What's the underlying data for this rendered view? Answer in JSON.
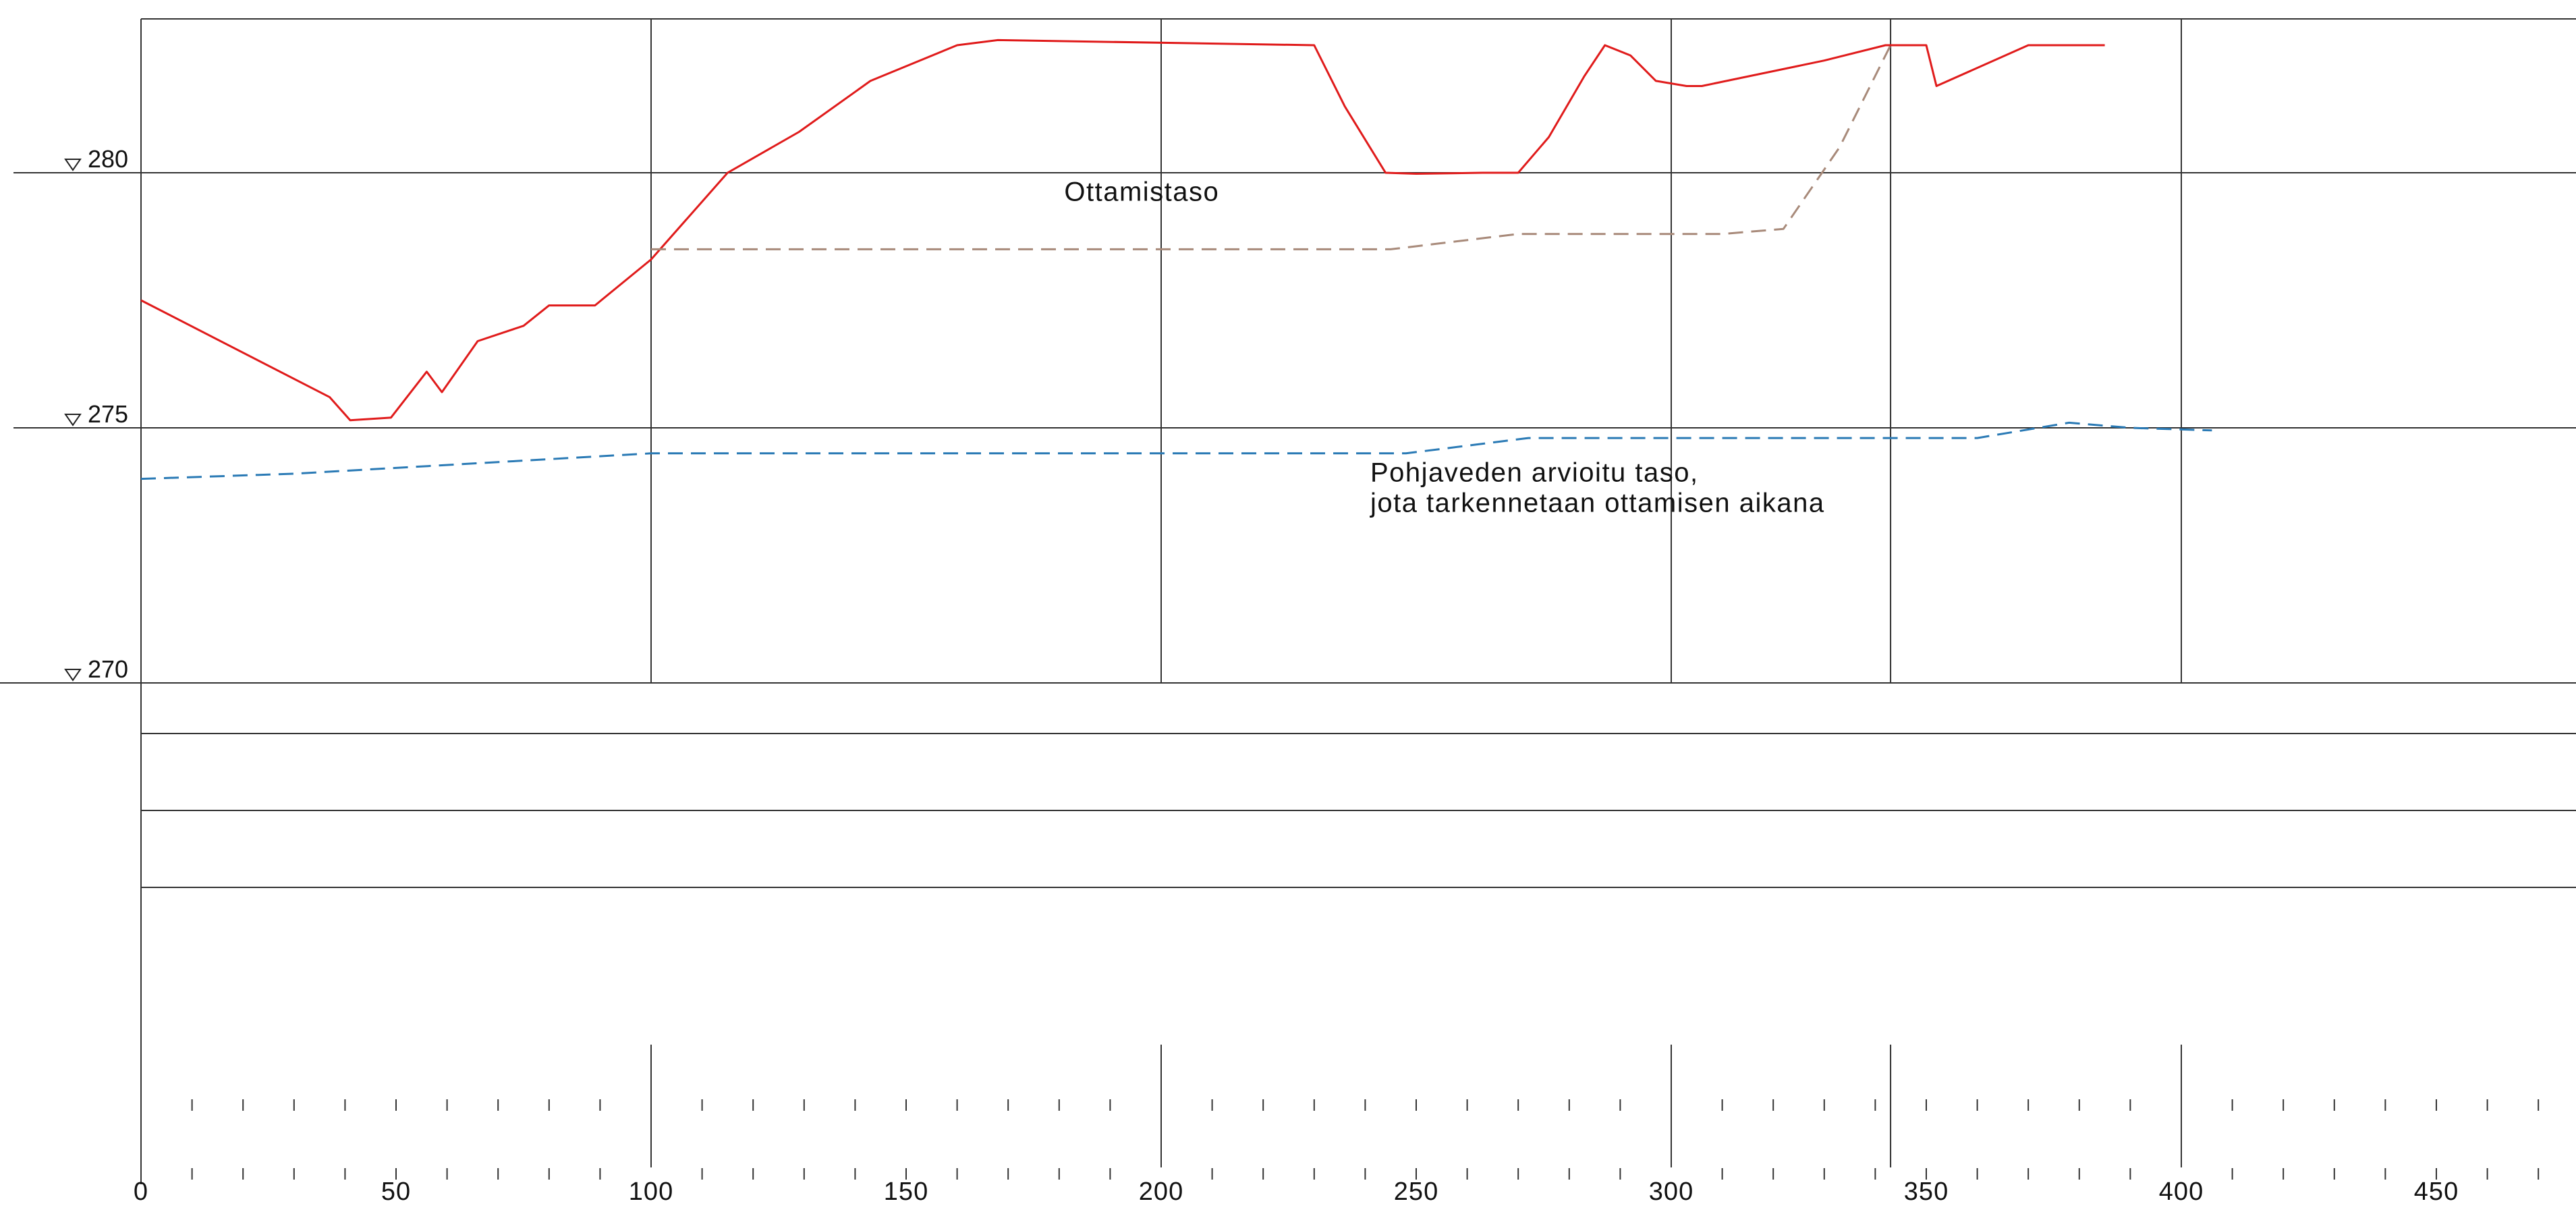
{
  "chart_data": {
    "type": "line",
    "title": "",
    "xlabel": "",
    "ylabel": "",
    "xlim": [
      0,
      475
    ],
    "ylim": [
      270,
      283
    ],
    "grid": true,
    "x_ticks": [
      0,
      50,
      100,
      150,
      200,
      250,
      300,
      350,
      400,
      450
    ],
    "x_tick_labels": [
      "0",
      "50",
      "100",
      "150",
      "200",
      "250",
      "300",
      "350",
      "400",
      "450"
    ],
    "vertical_gridlines_x": [
      100,
      200,
      300,
      343,
      400
    ],
    "level_markers": [
      {
        "value": 280,
        "label": "280"
      },
      {
        "value": 275,
        "label": "275"
      },
      {
        "value": 270,
        "label": "270"
      }
    ],
    "series": [
      {
        "color": "#e01b1b",
        "style": "solid",
        "x": [
          0,
          37,
          41,
          49,
          56,
          59,
          66,
          75,
          80,
          89,
          100,
          115,
          129,
          143,
          160,
          168,
          230,
          236,
          244,
          250,
          263,
          270,
          276,
          283,
          287,
          292,
          297,
          303,
          306,
          330,
          342,
          348,
          350,
          352,
          370,
          385
        ],
        "y": [
          277.5,
          275.6,
          275.15,
          275.2,
          276.1,
          275.7,
          276.7,
          277.0,
          277.4,
          277.4,
          278.3,
          280.0,
          280.8,
          281.8,
          282.5,
          282.6,
          282.5,
          281.3,
          280.0,
          279.98,
          280.0,
          280.0,
          280.7,
          281.9,
          282.5,
          282.3,
          281.8,
          281.7,
          281.7,
          282.2,
          282.5,
          282.5,
          282.5,
          281.7,
          282.5,
          282.5
        ]
      },
      {
        "color": "#a88a7a",
        "style": "dashed",
        "x": [
          100,
          150,
          200,
          245,
          270,
          290,
          310,
          322,
          333,
          343
        ],
        "y": [
          278.5,
          278.5,
          278.5,
          278.5,
          278.8,
          278.8,
          278.8,
          278.9,
          280.5,
          282.5
        ]
      },
      {
        "color": "#2a7ab5",
        "style": "dashed",
        "x": [
          0,
          30,
          100,
          150,
          200,
          248,
          272,
          300,
          350,
          360,
          378,
          390,
          406
        ],
        "y": [
          274.0,
          274.1,
          274.5,
          274.5,
          274.5,
          274.5,
          274.8,
          274.8,
          274.8,
          274.8,
          275.1,
          275.0,
          274.95
        ]
      }
    ],
    "annotations": [
      {
        "text": "Ottamistaso",
        "x": 181,
        "y": 279.45
      },
      {
        "text": "Pohjaveden arvioitu taso,",
        "x": 241,
        "y": 273.95
      },
      {
        "text": "jota tarkennetaan ottamisen aikana",
        "x": 241,
        "y": 273.35
      }
    ]
  }
}
